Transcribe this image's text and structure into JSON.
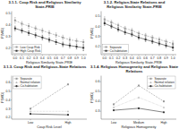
{
  "chart_data": [
    {
      "type": "line",
      "title": "3.1.1. Coup Risk and Religious Similarity State-PRIE",
      "x_label": "Religious Similarity State-PRIE",
      "y_label": "P(MID)",
      "x": [
        0.0,
        0.1,
        0.2,
        0.3,
        0.4,
        0.5,
        0.6,
        0.7,
        0.8,
        0.9,
        1.0
      ],
      "xlim": [
        -0.05,
        1.05
      ],
      "xticks": [
        {
          "value": 0.0,
          "label": "0.0"
        },
        {
          "value": 0.1,
          "label": "0.1"
        },
        {
          "value": 0.2,
          "label": "0.2"
        },
        {
          "value": 0.3,
          "label": "0.3"
        },
        {
          "value": 0.4,
          "label": "0.4"
        },
        {
          "value": 0.5,
          "label": "0.5"
        },
        {
          "value": 0.6,
          "label": "0.6"
        },
        {
          "value": 0.7,
          "label": "0.7"
        },
        {
          "value": 0.8,
          "label": "0.8"
        },
        {
          "value": 0.9,
          "label": "0.9"
        },
        {
          "value": 1.0,
          "label": "1.0"
        }
      ],
      "ylim": [
        0.14,
        0.52
      ],
      "yticks": [
        0.2,
        0.3,
        0.4,
        0.5
      ],
      "grid": false,
      "legend": "lower left",
      "series": [
        {
          "name": "Low Coup Risk",
          "color": "#999999",
          "line_style": "dashed",
          "marker": "square",
          "values": [
            0.44,
            0.41,
            0.39,
            0.37,
            0.35,
            0.33,
            0.31,
            0.29,
            0.27,
            0.26,
            0.25
          ],
          "errors": [
            0.025,
            0.02,
            0.02,
            0.02,
            0.02,
            0.02,
            0.02,
            0.02,
            0.02,
            0.02,
            0.02
          ]
        },
        {
          "name": "High Coup Risk",
          "color": "#333333",
          "line_style": "solid",
          "marker": "square",
          "values": [
            0.37,
            0.35,
            0.33,
            0.31,
            0.29,
            0.27,
            0.25,
            0.23,
            0.22,
            0.21,
            0.2
          ],
          "errors": [
            0.02,
            0.02,
            0.02,
            0.02,
            0.02,
            0.02,
            0.02,
            0.02,
            0.02,
            0.02,
            0.025
          ]
        }
      ]
    },
    {
      "type": "line",
      "title": "3.1.2. Religion-State Relations and\nReligious Similarity State-PRIE",
      "x_label": "Religious Similarity State-PRIE",
      "y_label": "P(MID)",
      "x": [
        0.0,
        0.1,
        0.2,
        0.3,
        0.4,
        0.5,
        0.6,
        0.7,
        0.8,
        0.9,
        1.0
      ],
      "xlim": [
        -0.05,
        1.05
      ],
      "xticks": [
        {
          "value": 0.0,
          "label": "0.0"
        },
        {
          "value": 0.1,
          "label": "0.1"
        },
        {
          "value": 0.2,
          "label": "0.2"
        },
        {
          "value": 0.3,
          "label": "0.3"
        },
        {
          "value": 0.4,
          "label": "0.4"
        },
        {
          "value": 0.5,
          "label": "0.5"
        },
        {
          "value": 0.6,
          "label": "0.6"
        },
        {
          "value": 0.7,
          "label": "0.7"
        },
        {
          "value": 0.8,
          "label": "0.8"
        },
        {
          "value": 0.9,
          "label": "0.9"
        },
        {
          "value": 1.0,
          "label": "1.0"
        }
      ],
      "ylim": [
        0.12,
        0.55
      ],
      "yticks": [
        0.2,
        0.3,
        0.4,
        0.5
      ],
      "grid": false,
      "legend": "lower left",
      "series": [
        {
          "name": "Separate",
          "color": "#999999",
          "line_style": "dashed",
          "marker": "square",
          "values": [
            0.47,
            0.44,
            0.41,
            0.38,
            0.36,
            0.33,
            0.31,
            0.29,
            0.27,
            0.25,
            0.23
          ],
          "errors": [
            0.025,
            0.02,
            0.02,
            0.02,
            0.02,
            0.02,
            0.02,
            0.02,
            0.02,
            0.02,
            0.025
          ]
        },
        {
          "name": "Co-habitation",
          "color": "#333333",
          "line_style": "solid",
          "marker": "square",
          "values": [
            0.43,
            0.4,
            0.37,
            0.34,
            0.32,
            0.29,
            0.27,
            0.25,
            0.23,
            0.21,
            0.19
          ],
          "errors": [
            0.02,
            0.02,
            0.02,
            0.02,
            0.02,
            0.02,
            0.02,
            0.02,
            0.02,
            0.02,
            0.03
          ]
        }
      ]
    },
    {
      "type": "line",
      "title": "3.1.3. Coup Risk and Religious-State Relations",
      "x_label": "Coup Risk Level",
      "y_label": "P(MID)",
      "categories": [
        "Low",
        "High"
      ],
      "ylim": [
        0.18,
        0.68
      ],
      "yticks": [
        0.2,
        0.3,
        0.4,
        0.5,
        0.6
      ],
      "grid": false,
      "legend": "upper left",
      "series": [
        {
          "name": "Separate",
          "color": "#999999",
          "line_style": "dashed",
          "marker": "square",
          "values": [
            0.3,
            0.58
          ]
        },
        {
          "name": "Normal relation",
          "color": "#bbbbbb",
          "line_style": "dotted",
          "marker": "triangle",
          "values": [
            0.27,
            0.27
          ]
        },
        {
          "name": "Co-habitation",
          "color": "#333333",
          "line_style": "solid",
          "marker": "circle",
          "values": [
            0.24,
            0.23
          ]
        }
      ]
    },
    {
      "type": "line",
      "title": "3.1.4. Religious Homogeneity and Religious State Relations",
      "x_label": "Religious Homogeneity",
      "y_label": "P(MID)",
      "categories": [
        "Low",
        "Medium",
        "High"
      ],
      "ylim": [
        0.22,
        0.66
      ],
      "yticks": [
        0.3,
        0.4,
        0.5,
        0.6
      ],
      "grid": false,
      "legend": "upper right",
      "series": [
        {
          "name": "Separate",
          "color": "#999999",
          "line_style": "dashed",
          "marker": "square",
          "values": [
            0.37,
            0.56,
            0.4
          ]
        },
        {
          "name": "Normal relation",
          "color": "#bbbbbb",
          "line_style": "dotted",
          "marker": "triangle",
          "values": [
            0.34,
            0.44,
            0.34
          ]
        },
        {
          "name": "Co-habitation",
          "color": "#333333",
          "line_style": "solid",
          "marker": "circle",
          "values": [
            0.31,
            0.33,
            0.29
          ]
        }
      ]
    }
  ]
}
